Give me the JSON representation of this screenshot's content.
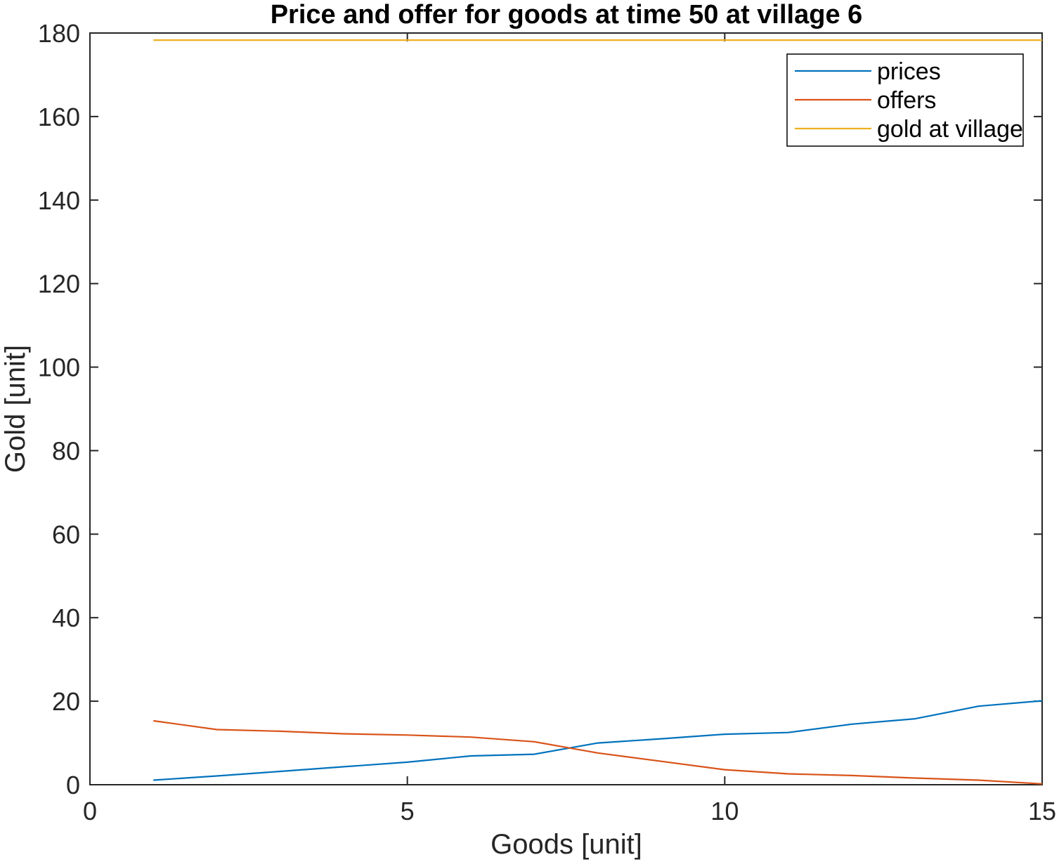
{
  "colors": {
    "prices": "#0072BD",
    "offers": "#D95319",
    "gold_at_village": "#EDB120",
    "axis": "#262626"
  },
  "chart_data": {
    "type": "line",
    "title": "Price and offer for goods at time 50 at village 6",
    "xlabel": "Goods [unit]",
    "ylabel": "Gold [unit]",
    "xlim": [
      0,
      15
    ],
    "ylim": [
      0,
      180
    ],
    "xticks": [
      0,
      5,
      10,
      15
    ],
    "xtick_labels": [
      "0",
      "5",
      "10",
      "15"
    ],
    "yticks": [
      0,
      20,
      40,
      60,
      80,
      100,
      120,
      140,
      160,
      180
    ],
    "ytick_labels": [
      "0",
      "20",
      "40",
      "60",
      "80",
      "100",
      "120",
      "140",
      "160",
      "180"
    ],
    "grid": false,
    "legend_position": "top-right",
    "x": [
      1,
      2,
      3,
      4,
      5,
      6,
      7,
      8,
      9,
      10,
      11,
      12,
      13,
      14,
      15
    ],
    "series": [
      {
        "name": "prices",
        "color": "#0072BD",
        "values": [
          1.1,
          2.1,
          3.2,
          4.3,
          5.4,
          6.9,
          7.3,
          10.0,
          11.0,
          12.1,
          12.5,
          14.5,
          15.8,
          18.8,
          20.1
        ]
      },
      {
        "name": "offers",
        "color": "#D95319",
        "values": [
          15.3,
          13.2,
          12.8,
          12.2,
          11.9,
          11.4,
          10.3,
          7.6,
          5.6,
          3.6,
          2.6,
          2.2,
          1.6,
          1.1,
          0.2
        ]
      },
      {
        "name": "gold at village",
        "color": "#EDB120",
        "values": [
          178.3,
          178.3,
          178.3,
          178.3,
          178.3,
          178.3,
          178.3,
          178.3,
          178.3,
          178.3,
          178.3,
          178.3,
          178.3,
          178.3,
          178.3
        ]
      }
    ]
  }
}
